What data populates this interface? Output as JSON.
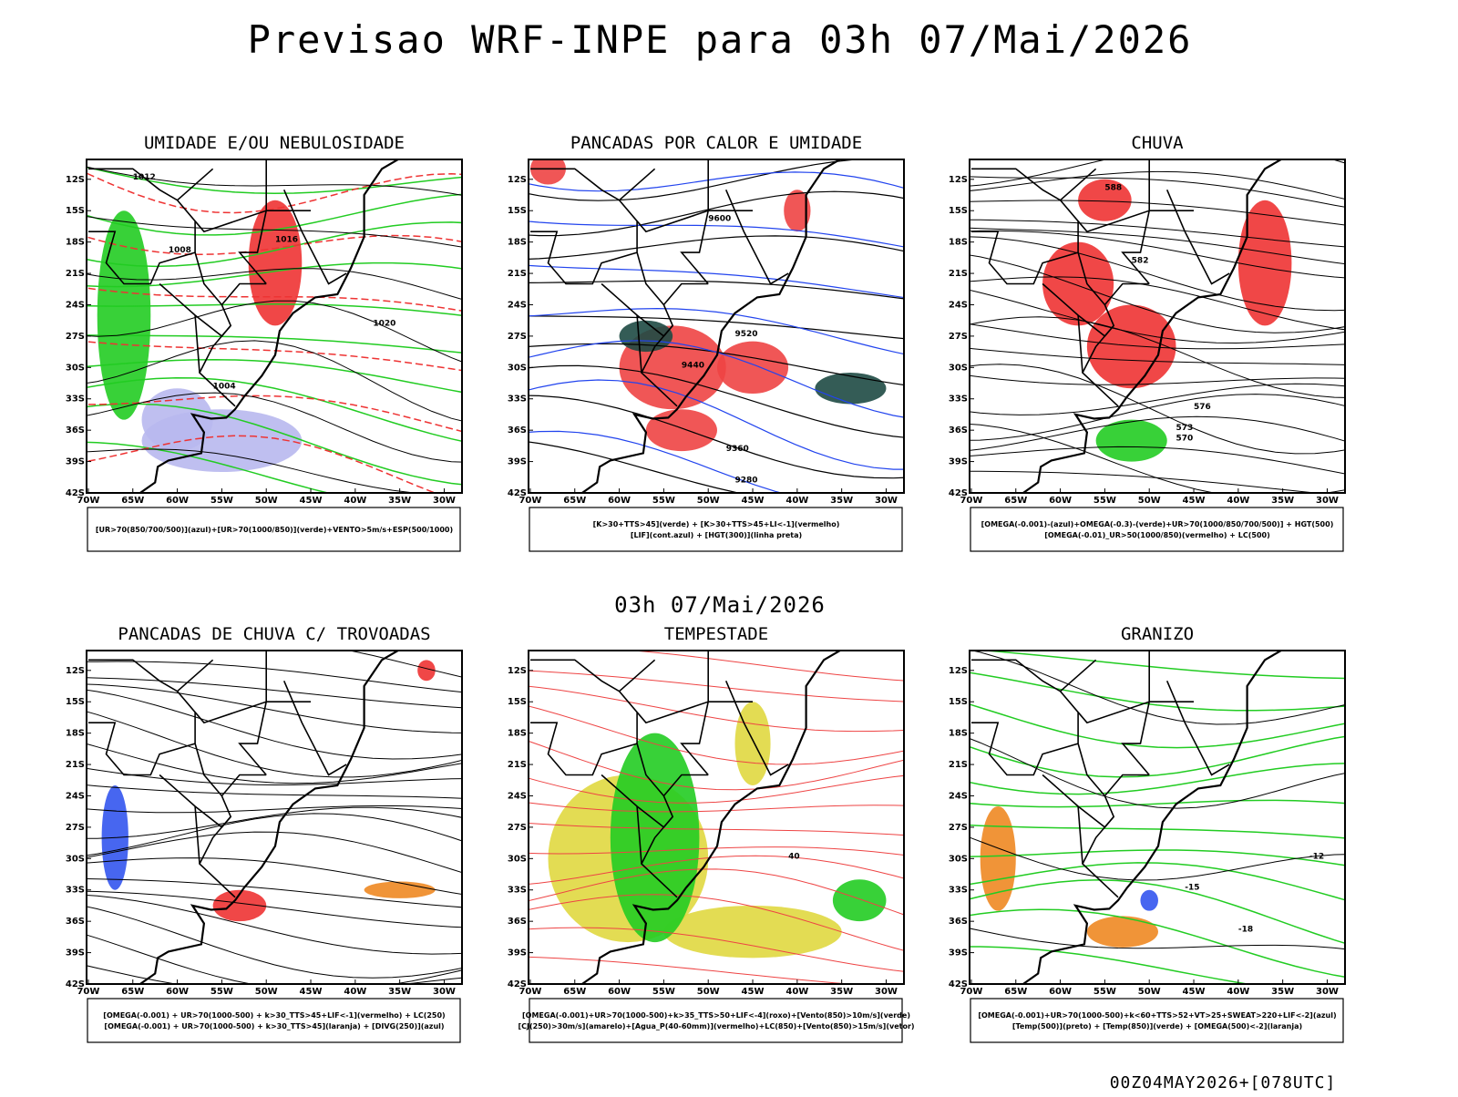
{
  "header": {
    "title": "Previsao WRF-INPE  para 03h 07/Mai/2026",
    "subtitle": "03h 07/Mai/2026",
    "footer": "00Z04MAY2026+[078UTC]"
  },
  "axes": {
    "lat_labels": [
      "12S",
      "15S",
      "18S",
      "21S",
      "24S",
      "27S",
      "30S",
      "33S",
      "36S",
      "39S",
      "42S"
    ],
    "lon_labels": [
      "70W",
      "65W",
      "60W",
      "55W",
      "50W",
      "45W",
      "40W",
      "35W",
      "30W"
    ]
  },
  "panels": [
    {
      "title": "UMIDADE E/OU NEBULOSIDADE",
      "legend": [
        "[UR>70(850/700/500)](azul)+[UR>70(1000/850)](verde)+VENTO>5m/s+ESP(500/1000)"
      ],
      "contour_labels": [
        "1012",
        "1016",
        "1008",
        "1020",
        "1004"
      ]
    },
    {
      "title": "PANCADAS POR CALOR E UMIDADE",
      "legend": [
        "[K>30+TTS>45](verde) + [K>30+TTS>45+LI<-1](vermelho)",
        "[LIF](cont.azul) + [HGT(300)](linha preta)"
      ],
      "contour_labels": [
        "9600",
        "9520",
        "9440",
        "9360",
        "9280"
      ]
    },
    {
      "title": "CHUVA",
      "legend": [
        "[OMEGA(-0.001)-(azul)+OMEGA(-0.3)-(verde)+UR>70(1000/850/700/500)] + HGT(500)",
        "[OMEGA(-0.01)_UR>50(1000/850)(vermelho) + LC(500)"
      ],
      "contour_labels": [
        "588",
        "582",
        "576",
        "573",
        "570"
      ]
    },
    {
      "title": "PANCADAS DE CHUVA C/ TROVOADAS",
      "legend": [
        "[OMEGA(-0.001) + UR>70(1000-500) + k>30_TTS>45+LIF<-1](vermelho) + LC(250)",
        "[OMEGA(-0.001) + UR>70(1000-500) + k>30_TTS>45](laranja) + [DIVG(250)](azul)"
      ],
      "contour_labels": []
    },
    {
      "title": "TEMPESTADE",
      "legend": [
        "[OMEGA(-0.001)+UR>70(1000-500)+k>35_TTS>50+LIF<-4](roxo)+[Vento(850)>10m/s](verde)",
        "[CJ(250)>30m/s](amarelo)+[Agua_P(40-60mm)](vermelho)+LC(850)+[Vento(850)>15m/s](vetor)"
      ],
      "contour_labels": [
        "40"
      ]
    },
    {
      "title": "GRANIZO",
      "legend": [
        "[OMEGA(-0.001)+UR>70(1000-500)+k<60+TTS>52+VT>25+SWEAT>220+LIF<-2](azul)",
        "[Temp(500)](preto) + [Temp(850)](verde) + [OMEGA(500)<-2](laranja)"
      ],
      "contour_labels": [
        "-12",
        "-15",
        "-18"
      ]
    }
  ]
}
